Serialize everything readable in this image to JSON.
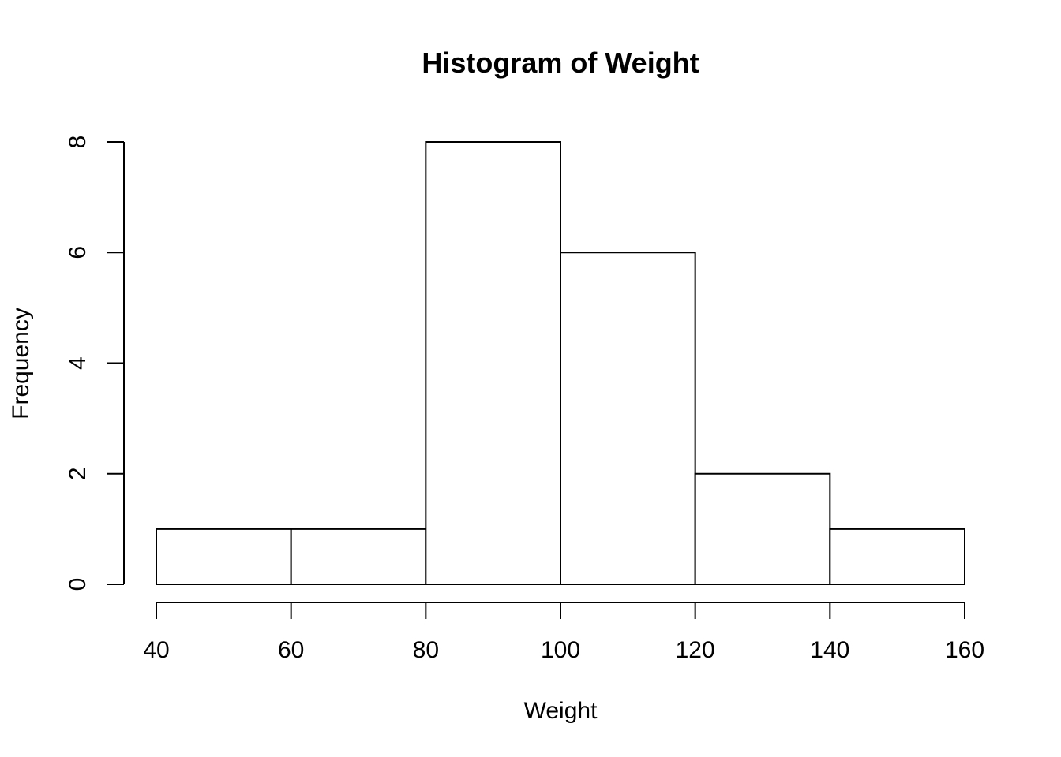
{
  "chart_data": {
    "type": "bar",
    "title": "Histogram of Weight",
    "xlabel": "Weight",
    "ylabel": "Frequency",
    "bins": [
      {
        "start": 40,
        "end": 60,
        "count": 1
      },
      {
        "start": 60,
        "end": 80,
        "count": 1
      },
      {
        "start": 80,
        "end": 100,
        "count": 8
      },
      {
        "start": 100,
        "end": 120,
        "count": 6
      },
      {
        "start": 120,
        "end": 140,
        "count": 2
      },
      {
        "start": 140,
        "end": 160,
        "count": 1
      }
    ],
    "xlim": [
      40,
      160
    ],
    "ylim": [
      0,
      8
    ],
    "x_ticks": [
      "40",
      "60",
      "80",
      "100",
      "120",
      "140",
      "160"
    ],
    "y_ticks": [
      "0",
      "2",
      "4",
      "6",
      "8"
    ],
    "grid": false,
    "bar_fill": "#ffffff",
    "bar_stroke": "#000000"
  }
}
